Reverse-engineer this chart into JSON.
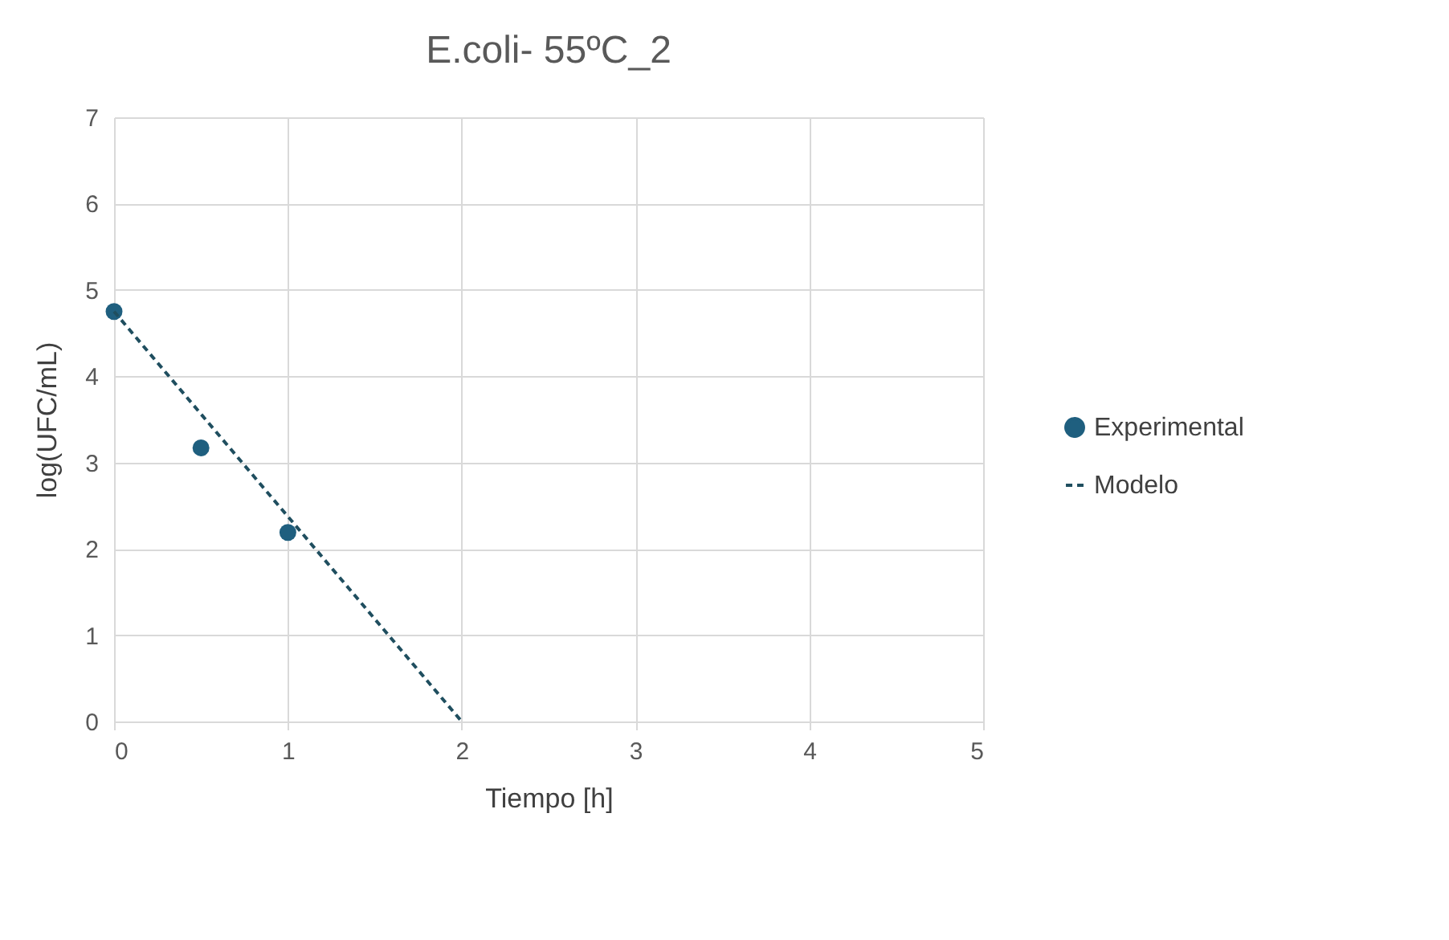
{
  "chart_data": {
    "type": "scatter",
    "title": "E.coli- 55ºC_2",
    "xlabel": "Tiempo [h]",
    "ylabel": "log(UFC/mL)",
    "xlim": [
      0,
      5
    ],
    "xticks": [
      0,
      1,
      2,
      3,
      4,
      5
    ],
    "ylim": [
      0,
      7
    ],
    "yticks": [
      0,
      1,
      2,
      3,
      4,
      5,
      6,
      7
    ],
    "grid": true,
    "legend": "right",
    "series": [
      {
        "name": "Experimental",
        "marker": "circle",
        "color": "#1f5f7f",
        "x": [
          0,
          0.5,
          1
        ],
        "values": [
          4.75,
          3.17,
          2.19
        ]
      },
      {
        "name": "Modelo",
        "type": "line",
        "line_style": "dashed",
        "marker": "none",
        "color": "#1f4e5f",
        "x": [
          0,
          2
        ],
        "values": [
          4.75,
          0
        ]
      }
    ]
  }
}
